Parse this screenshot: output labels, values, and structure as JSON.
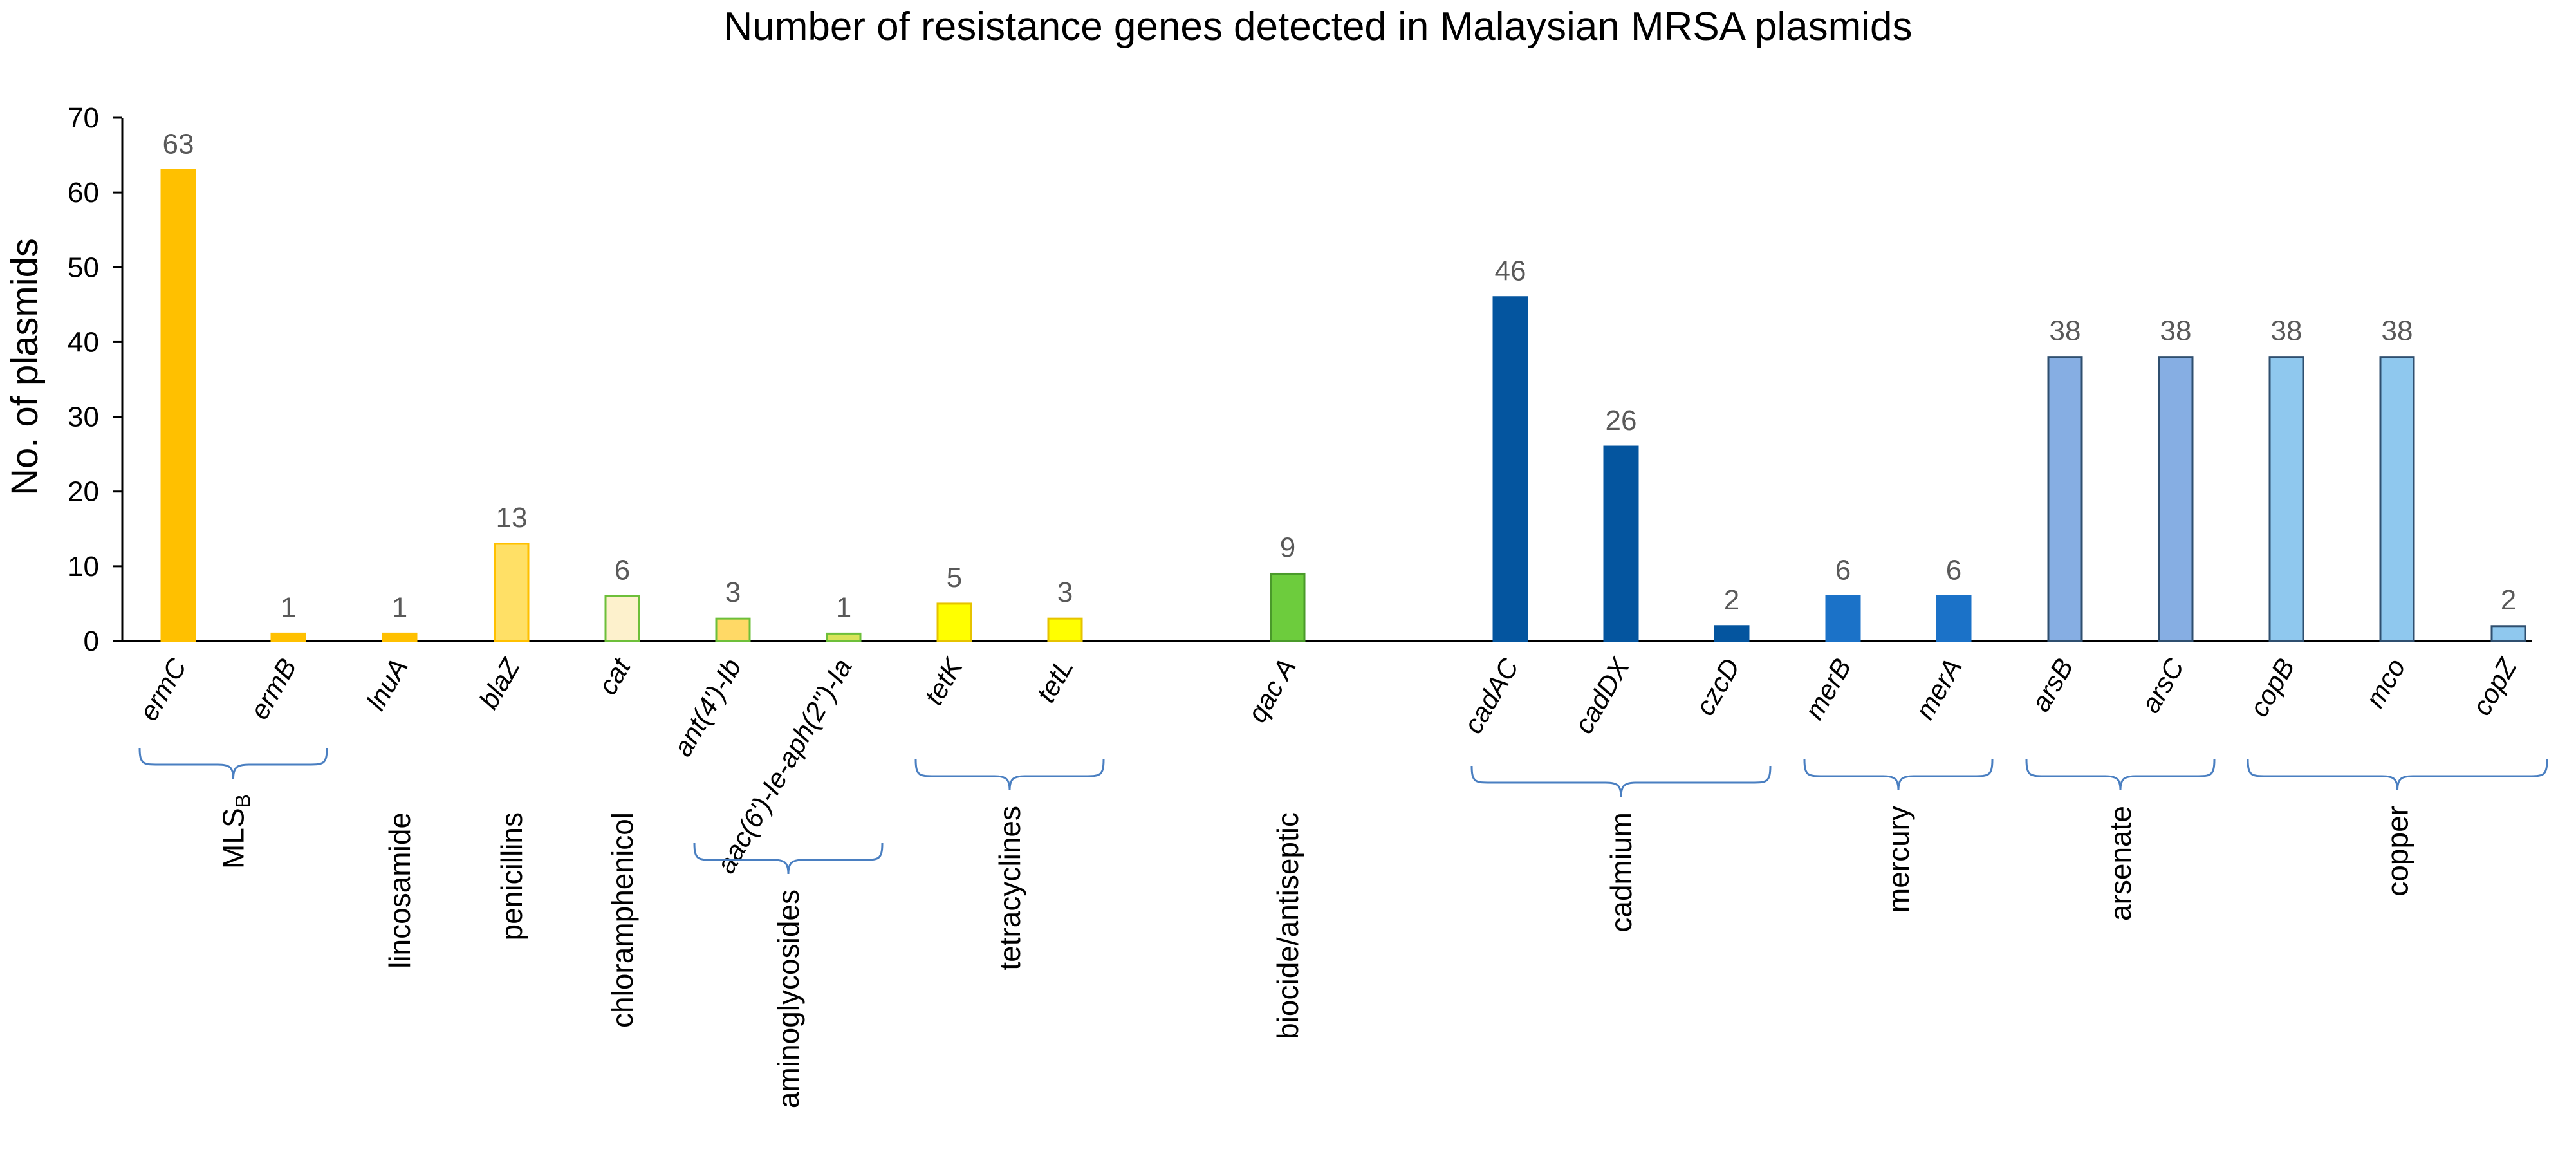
{
  "chart_data": {
    "type": "bar",
    "title": "Number of resistance genes detected in Malaysian MRSA plasmids",
    "xlabel": "",
    "ylabel": "No. of plasmids",
    "ylim": [
      0,
      70
    ],
    "yticks": [
      0,
      10,
      20,
      30,
      40,
      50,
      60,
      70
    ],
    "grid": false,
    "legend": "none",
    "bars": [
      {
        "gene": "ermC",
        "value": 63,
        "color": "#ffc000",
        "stroke": "#ffc000"
      },
      {
        "gene": "ermB",
        "value": 1,
        "color": "#ffc000",
        "stroke": "#ffc000"
      },
      {
        "gene": "lnuA",
        "value": 1,
        "color": "#ffc000",
        "stroke": "#ffc000"
      },
      {
        "gene": "blaZ",
        "value": 13,
        "color": "#ffe066",
        "stroke": "#ffc000"
      },
      {
        "gene": "cat",
        "value": 6,
        "color": "#fdf1cc",
        "stroke": "#6dbf3a"
      },
      {
        "gene": "ant(4')-Ib",
        "value": 3,
        "color": "#ffd966",
        "stroke": "#6dbf3a"
      },
      {
        "gene": "aac(6')-Ie-aph(2'')-Ia",
        "value": 1,
        "color": "#d9e45a",
        "stroke": "#6dbf3a"
      },
      {
        "gene": "tetK",
        "value": 5,
        "color": "#ffff00",
        "stroke": "#e6c300"
      },
      {
        "gene": "tetL",
        "value": 3,
        "color": "#ffff00",
        "stroke": "#e6c300"
      },
      {
        "gene": "qac A",
        "value": 9,
        "color": "#6dcc3d",
        "stroke": "#4a9a2a"
      },
      {
        "gene": "cadAC",
        "value": 46,
        "color": "#04559f",
        "stroke": "#04559f"
      },
      {
        "gene": "cadDX",
        "value": 26,
        "color": "#04559f",
        "stroke": "#04559f"
      },
      {
        "gene": "czcD",
        "value": 2,
        "color": "#04559f",
        "stroke": "#04559f"
      },
      {
        "gene": "merB",
        "value": 6,
        "color": "#1b72c8",
        "stroke": "#1b72c8"
      },
      {
        "gene": "merA",
        "value": 6,
        "color": "#1b72c8",
        "stroke": "#1b72c8"
      },
      {
        "gene": "arsB",
        "value": 38,
        "color": "#86aee3",
        "stroke": "#2f4f6f"
      },
      {
        "gene": "arsC",
        "value": 38,
        "color": "#86aee3",
        "stroke": "#2f4f6f"
      },
      {
        "gene": "copB",
        "value": 38,
        "color": "#8fc8ee",
        "stroke": "#2f4f6f"
      },
      {
        "gene": "mco",
        "value": 38,
        "color": "#8fc8ee",
        "stroke": "#2f4f6f"
      },
      {
        "gene": "copZ",
        "value": 2,
        "color": "#8fc8ee",
        "stroke": "#2f4f6f"
      }
    ],
    "groups": [
      {
        "label": "MLS",
        "subscript": "B",
        "from": 0,
        "to": 1,
        "brace": true
      },
      {
        "label": "lincosamide",
        "from": 2,
        "to": 2,
        "brace": false
      },
      {
        "label": "penicillins",
        "from": 3,
        "to": 3,
        "brace": false
      },
      {
        "label": "chloramphenicol",
        "from": 4,
        "to": 4,
        "brace": false
      },
      {
        "label": "aminoglycosides",
        "from": 5,
        "to": 6,
        "brace": true
      },
      {
        "label": "tetracyclines",
        "from": 7,
        "to": 8,
        "brace": true
      },
      {
        "label": "biocide/antiseptic",
        "from": 9,
        "to": 9,
        "brace": false
      },
      {
        "label": "cadmium",
        "from": 10,
        "to": 12,
        "brace": true
      },
      {
        "label": "mercury",
        "from": 13,
        "to": 14,
        "brace": true
      },
      {
        "label": "arsenate",
        "from": 15,
        "to": 16,
        "brace": true
      },
      {
        "label": "copper",
        "from": 17,
        "to": 19,
        "brace": true
      }
    ]
  }
}
